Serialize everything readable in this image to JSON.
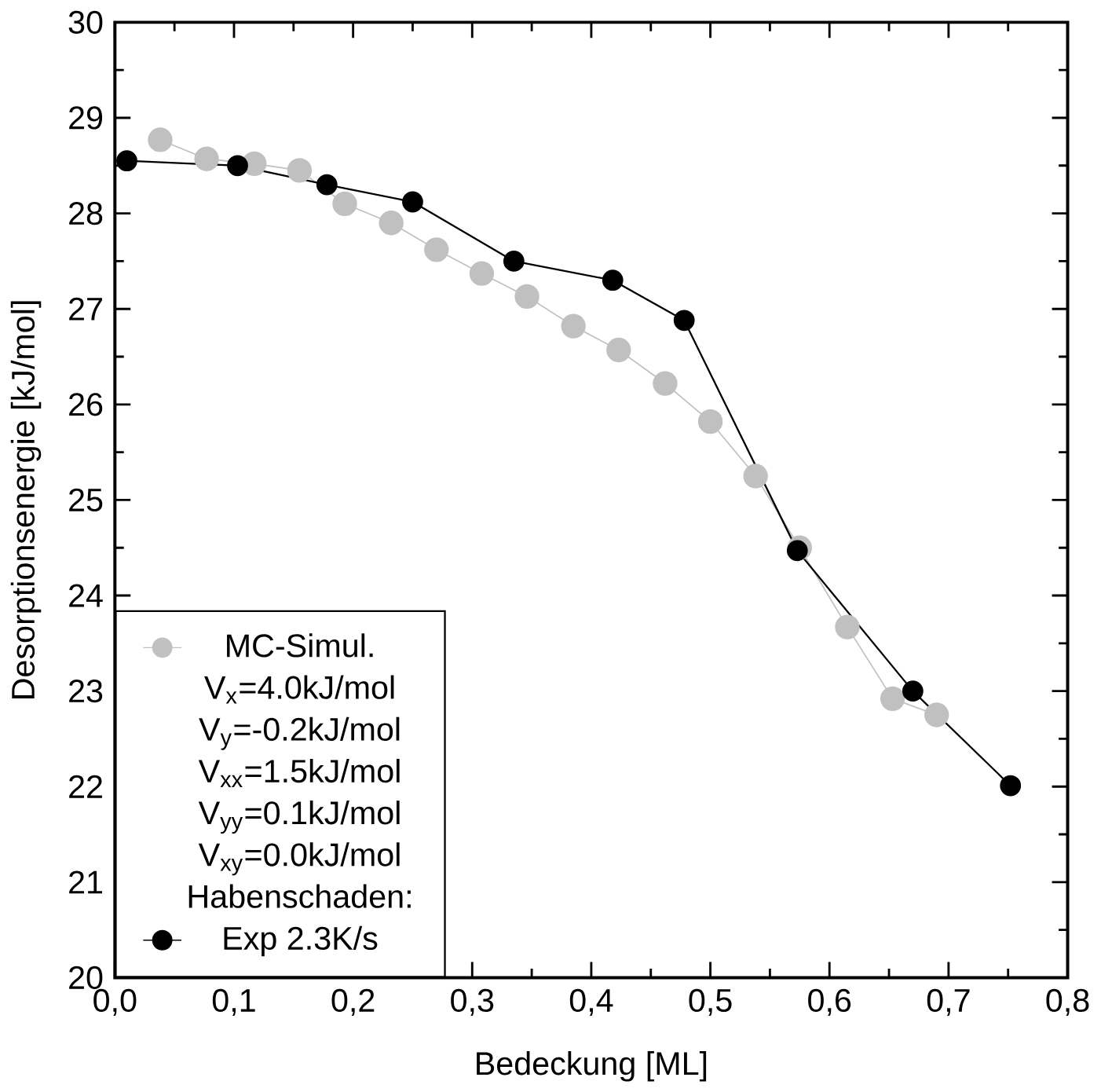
{
  "chart_data": {
    "type": "line",
    "xlabel": "Bedeckung [ML]",
    "ylabel": "Desorptionsenergie [kJ/mol]",
    "xlim": [
      0,
      0.8
    ],
    "ylim": [
      20,
      30
    ],
    "xticks": [
      {
        "value": 0,
        "label": "0,0"
      },
      {
        "value": 0.1,
        "label": "0,1"
      },
      {
        "value": 0.2,
        "label": "0,2"
      },
      {
        "value": 0.3,
        "label": "0,3"
      },
      {
        "value": 0.4,
        "label": "0,4"
      },
      {
        "value": 0.5,
        "label": "0,5"
      },
      {
        "value": 0.6,
        "label": "0,6"
      },
      {
        "value": 0.7,
        "label": "0,7"
      },
      {
        "value": 0.8,
        "label": "0,8"
      }
    ],
    "yticks": [
      20,
      21,
      22,
      23,
      24,
      25,
      26,
      27,
      28,
      29,
      30
    ],
    "marker": "circle",
    "line_style": "solid",
    "grid": false,
    "legend": "bottom left",
    "series": [
      {
        "name": "MC-Simul.",
        "color": "#c0c0c0",
        "x": [
          0.038,
          0.077,
          0.117,
          0.155,
          0.193,
          0.232,
          0.27,
          0.308,
          0.346,
          0.385,
          0.423,
          0.462,
          0.5,
          0.538,
          0.575,
          0.615,
          0.653,
          0.69
        ],
        "values": [
          28.77,
          28.57,
          28.52,
          28.45,
          28.1,
          27.9,
          27.62,
          27.37,
          27.13,
          26.82,
          26.57,
          26.22,
          25.82,
          25.25,
          24.5,
          23.67,
          22.92,
          22.75
        ]
      },
      {
        "name": "Exp 2.3K/s",
        "color": "#000000",
        "x": [
          0.01,
          0.103,
          0.178,
          0.25,
          0.335,
          0.418,
          0.478,
          0.573,
          0.67,
          0.752
        ],
        "values": [
          28.55,
          28.5,
          28.3,
          28.12,
          27.5,
          27.3,
          26.88,
          24.47,
          23.0,
          22.01
        ]
      }
    ],
    "annotations": [
      "V$_{x}$=4.0kJ/mol",
      "V$_{y}$=-0.2kJ/mol",
      "V$_{xx}$=1.5kJ/mol",
      "V$_{yy}$=0.1kJ/mol",
      "V$_{xy}$=0.0kJ/mol",
      "Habenschaden:"
    ]
  }
}
